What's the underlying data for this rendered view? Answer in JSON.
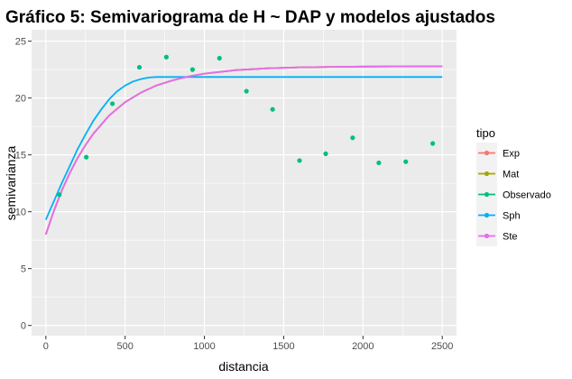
{
  "chart_data": {
    "type": "line",
    "title": "Gráfico 5: Semivariograma de H ~ DAP y modelos ajustados",
    "xlabel": "distancia",
    "ylabel": "semivarianza",
    "xlim": [
      -90,
      2590
    ],
    "ylim": [
      -0.9,
      26
    ],
    "x_ticks": [
      0,
      500,
      1000,
      1500,
      2000,
      2500
    ],
    "y_ticks": [
      0,
      5,
      10,
      15,
      20,
      25
    ],
    "x_tick_labels": [
      "0",
      "500",
      "1000",
      "1500",
      "2000",
      "2500"
    ],
    "y_tick_labels": [
      "0",
      "5",
      "10",
      "15",
      "20",
      "25"
    ],
    "grid": true,
    "background": "#ebebeb",
    "legend": {
      "title": "tipo",
      "position": "right",
      "entries": [
        {
          "label": "Exp",
          "color": "#F8766D"
        },
        {
          "label": "Mat",
          "color": "#A3A500"
        },
        {
          "label": "Observado",
          "color": "#00BF7D"
        },
        {
          "label": "Sph",
          "color": "#00B0F6"
        },
        {
          "label": "Ste",
          "color": "#E76BF3"
        }
      ]
    },
    "observed": {
      "color": "#00BF7D",
      "x": [
        85,
        255,
        420,
        590,
        760,
        925,
        1095,
        1265,
        1430,
        1600,
        1765,
        1935,
        2100,
        2270,
        2440
      ],
      "y": [
        11.5,
        14.8,
        19.5,
        22.7,
        23.6,
        22.5,
        23.5,
        20.6,
        19.0,
        14.5,
        15.1,
        16.5,
        14.3,
        14.4,
        16.0
      ]
    },
    "series": [
      {
        "name": "Exp",
        "color": "#F8766D",
        "x": [
          0,
          50,
          100,
          150,
          200,
          250,
          300,
          400,
          500,
          600,
          700,
          800,
          900,
          1000,
          1200,
          1400,
          1600,
          1800,
          2000,
          2200,
          2500
        ],
        "y": [
          8.0,
          10.05,
          11.84,
          13.38,
          14.72,
          15.87,
          16.87,
          18.47,
          19.64,
          20.48,
          21.11,
          21.56,
          21.9,
          22.14,
          22.45,
          22.61,
          22.7,
          22.74,
          22.76,
          22.78,
          22.79
        ]
      },
      {
        "name": "Mat",
        "color": "#A3A500",
        "x": [
          0,
          50,
          100,
          150,
          200,
          250,
          300,
          400,
          500,
          600,
          700,
          800,
          900,
          1000,
          1200,
          1400,
          1600,
          1800,
          2000,
          2200,
          2500
        ],
        "y": [
          8.0,
          10.05,
          11.84,
          13.38,
          14.72,
          15.87,
          16.87,
          18.47,
          19.64,
          20.48,
          21.11,
          21.56,
          21.9,
          22.14,
          22.45,
          22.61,
          22.7,
          22.74,
          22.76,
          22.78,
          22.79
        ]
      },
      {
        "name": "Sph",
        "color": "#00B0F6",
        "x": [
          0,
          50,
          100,
          150,
          200,
          250,
          300,
          350,
          400,
          450,
          500,
          550,
          600,
          650,
          700,
          750,
          2500
        ],
        "y": [
          9.3,
          10.9,
          12.5,
          14.0,
          15.5,
          16.8,
          18.0,
          19.0,
          19.9,
          20.6,
          21.1,
          21.45,
          21.67,
          21.8,
          21.85,
          21.85,
          21.85
        ]
      },
      {
        "name": "Ste",
        "color": "#E76BF3",
        "x": [
          0,
          50,
          100,
          150,
          200,
          250,
          300,
          400,
          500,
          600,
          700,
          800,
          900,
          1000,
          1200,
          1400,
          1600,
          1800,
          2000,
          2200,
          2500
        ],
        "y": [
          8.0,
          10.05,
          11.84,
          13.38,
          14.72,
          15.87,
          16.87,
          18.47,
          19.64,
          20.48,
          21.11,
          21.56,
          21.9,
          22.14,
          22.45,
          22.61,
          22.7,
          22.74,
          22.76,
          22.78,
          22.79
        ]
      }
    ]
  }
}
